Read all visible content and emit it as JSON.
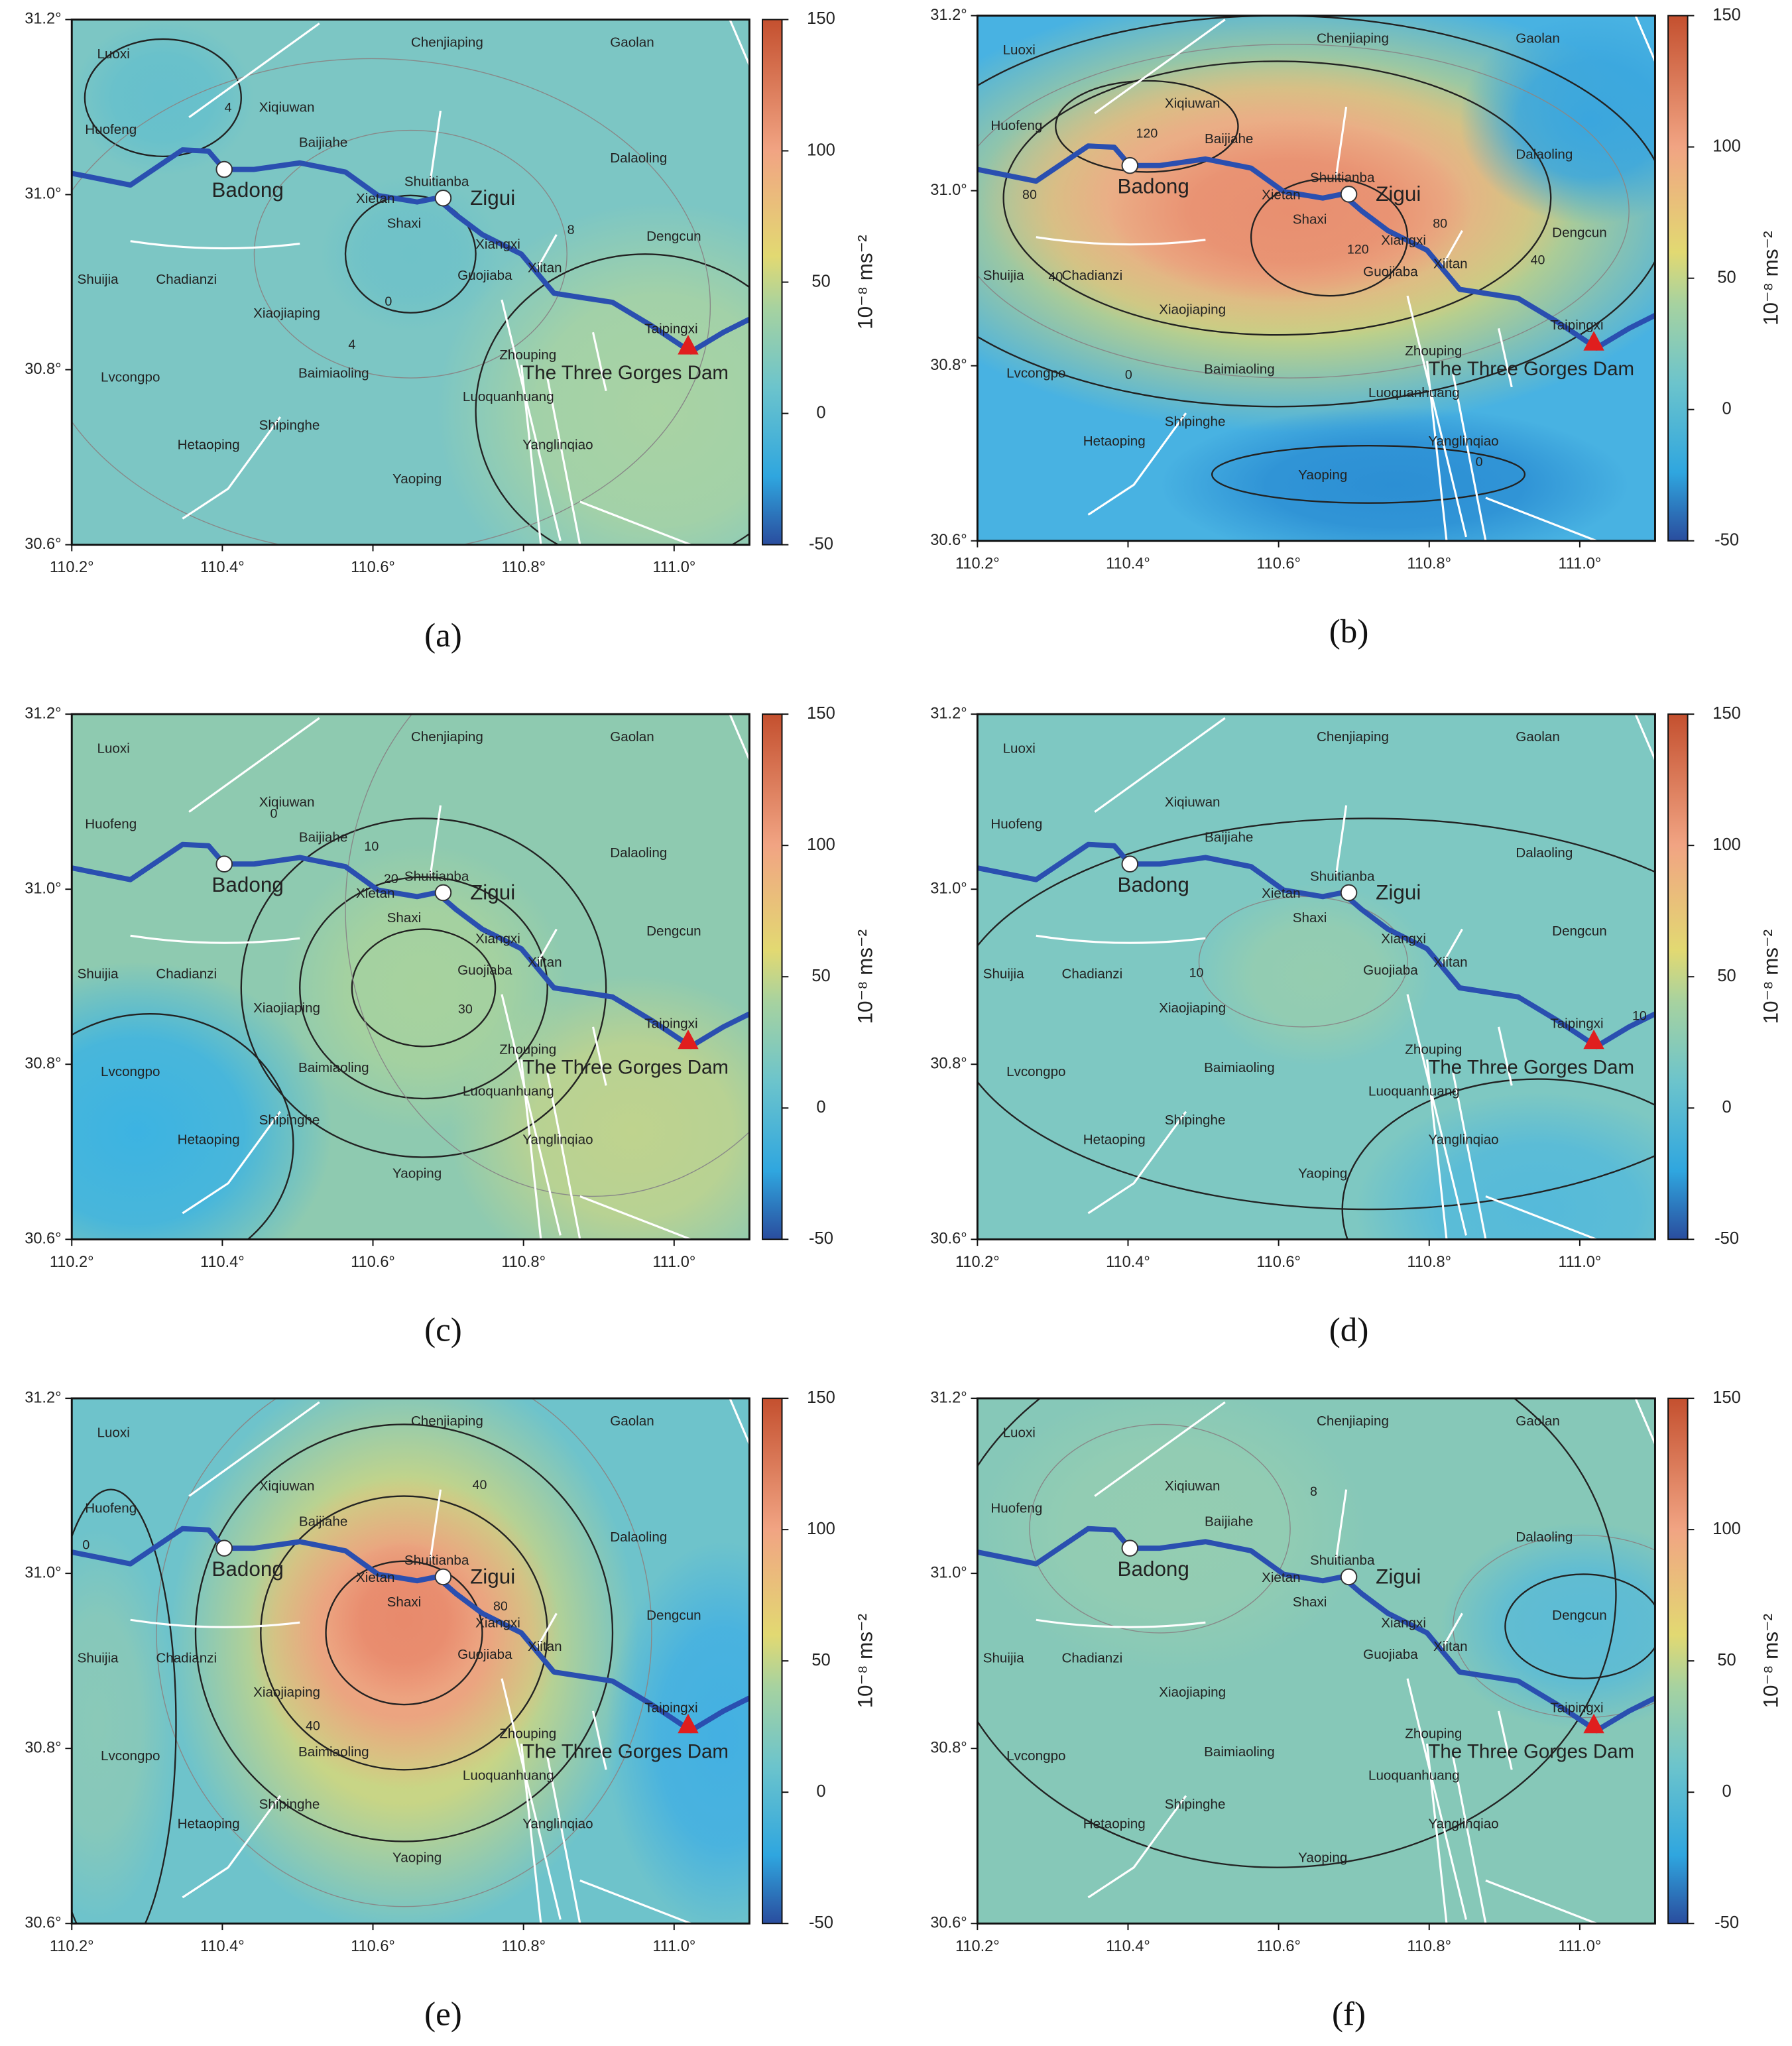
{
  "maps": {
    "xlim": [
      110.2,
      111.1
    ],
    "ylim": [
      30.6,
      31.2
    ],
    "xticks": [
      {
        "value": 110.2,
        "label": "110.2°"
      },
      {
        "value": 110.4,
        "label": "110.4°"
      },
      {
        "value": 110.6,
        "label": "110.6°"
      },
      {
        "value": 110.8,
        "label": "110.8°"
      },
      {
        "value": 111.0,
        "label": "111.0°"
      }
    ],
    "yticks": [
      {
        "value": 30.6,
        "label": "30.6°"
      },
      {
        "value": 30.8,
        "label": "30.8°"
      },
      {
        "value": 31.0,
        "label": "31.0°"
      },
      {
        "value": 31.2,
        "label": "31.2°"
      }
    ],
    "colorbar": {
      "lim": [
        -50,
        150
      ],
      "ticks": [
        -50,
        0,
        50,
        100,
        150
      ],
      "label": "10⁻⁸ ms⁻²"
    },
    "places": [
      "Luoxi",
      "Chenjiaping",
      "Gaolan",
      "Xiqiuwan",
      "Huofeng",
      "Baijiahe",
      "Dalaoling",
      "Shuitianba",
      "Xietan",
      "Shaxi",
      "Xiangxi",
      "Dengcun",
      "Shuijia",
      "Chadianzi",
      "Xiitan",
      "Guojiaba",
      "Xiaojiaping",
      "Taipingxi",
      "Zhouping",
      "Lvcongpo",
      "Baimiaoling",
      "Luoquanhuang",
      "Shipinghe",
      "Hetaoping",
      "Yanglinqiao",
      "Yaoping"
    ],
    "cities": [
      "Badong",
      "Zigui"
    ],
    "dam": "The Three Gorges Dam",
    "panels": [
      {
        "label": "(a)",
        "contours": [
          4,
          4,
          0,
          8
        ]
      },
      {
        "label": "(b)",
        "contours": [
          120,
          80,
          120,
          80,
          40,
          40,
          0,
          0
        ]
      },
      {
        "label": "(c)",
        "contours": [
          0,
          10,
          20,
          30
        ]
      },
      {
        "label": "(d)",
        "contours": [
          10,
          10
        ]
      },
      {
        "label": "(e)",
        "contours": [
          40,
          80,
          40,
          0
        ]
      },
      {
        "label": "(f)",
        "contours": [
          8
        ]
      }
    ]
  }
}
